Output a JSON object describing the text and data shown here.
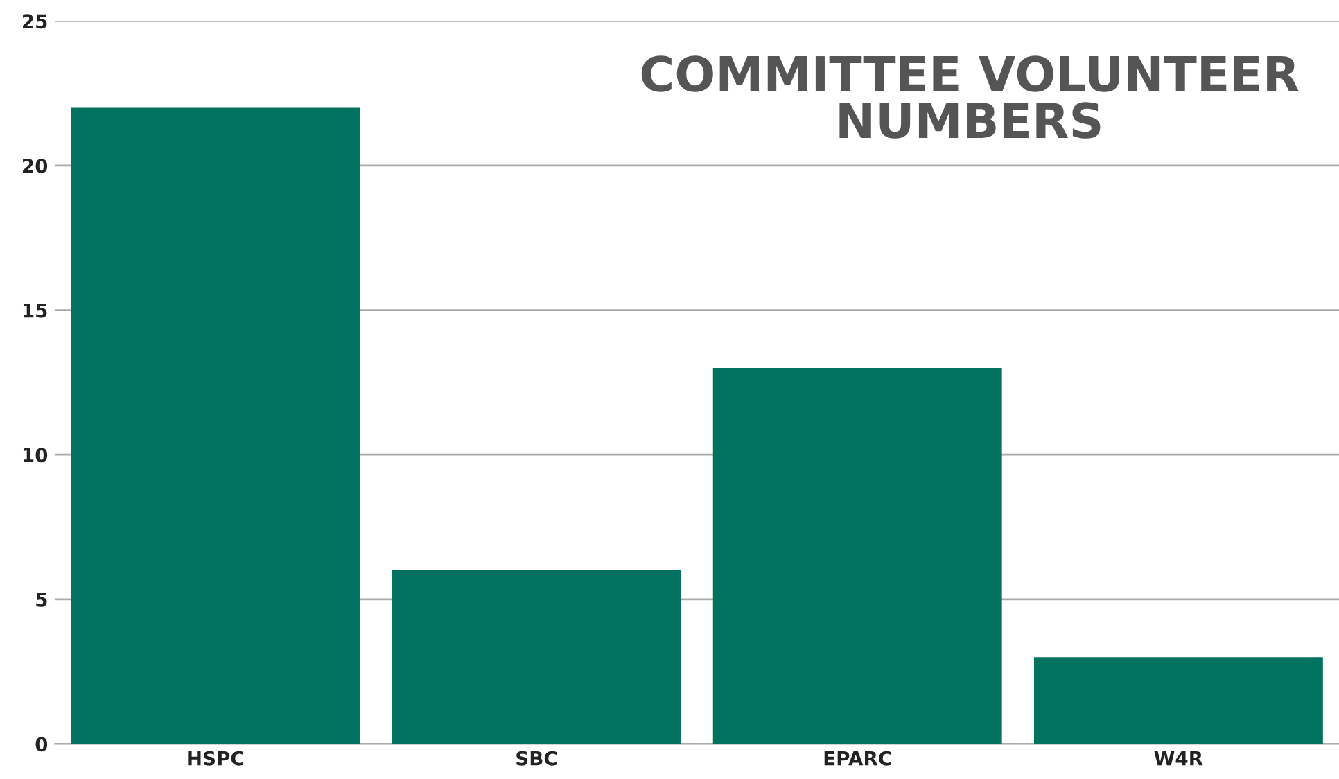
{
  "chart_data": {
    "type": "bar",
    "title": "COMMITTEE VOLUNTEER NUMBERS",
    "categories": [
      "HSPC",
      "SBC",
      "EPARC",
      "W4R"
    ],
    "values": [
      22,
      6,
      13,
      3
    ],
    "color": "#00725f",
    "ylim": [
      0,
      25
    ],
    "yticks": [
      0,
      5,
      10,
      15,
      20,
      25
    ],
    "grid": "y",
    "legend": false
  }
}
